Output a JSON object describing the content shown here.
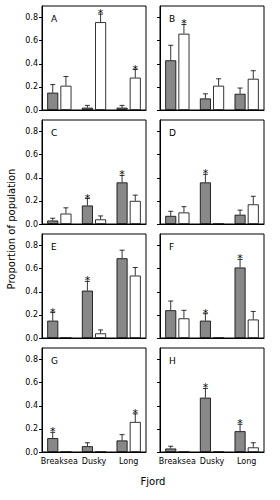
{
  "xlabel": "Fjord",
  "ylabel": "Proportion of population",
  "chart_data": [
    {
      "type": "bar",
      "title": "A",
      "categories": [
        "Breaksea",
        "Dusky",
        "Long"
      ],
      "series": [
        {
          "color": "#888888",
          "values": [
            0.15,
            0.02,
            0.02
          ],
          "errors": [
            0.07,
            0.02,
            0.02
          ]
        },
        {
          "color": "#ffffff",
          "values": [
            0.21,
            0.76,
            0.28
          ],
          "errors": [
            0.08,
            0.07,
            0.07
          ]
        }
      ],
      "annotations": [
        {
          "category": "Dusky",
          "text": "*"
        },
        {
          "category": "Long",
          "text": "*"
        }
      ],
      "ylim": [
        0,
        0.9
      ],
      "yticks": [
        {
          "value": 0,
          "label": "0.0"
        },
        0.2,
        0.4,
        0.6,
        0.8
      ],
      "tick_labels": "y"
    },
    {
      "type": "bar",
      "title": "B",
      "categories": [
        "Breaksea",
        "Dusky",
        "Long"
      ],
      "series": [
        {
          "color": "#888888",
          "values": [
            0.43,
            0.1,
            0.14
          ],
          "errors": [
            0.13,
            0.04,
            0.05
          ]
        },
        {
          "color": "#ffffff",
          "values": [
            0.66,
            0.21,
            0.27
          ],
          "errors": [
            0.08,
            0.06,
            0.07
          ]
        }
      ],
      "annotations": [
        {
          "category": "Breaksea",
          "text": "*"
        }
      ],
      "ylim": [
        0,
        0.9
      ],
      "yticks": [
        {
          "value": 0,
          "label": "0.0"
        },
        0.2,
        0.4,
        0.6,
        0.8
      ],
      "tick_labels": false
    },
    {
      "type": "bar",
      "title": "C",
      "categories": [
        "Breaksea",
        "Dusky",
        "Long"
      ],
      "series": [
        {
          "color": "#888888",
          "values": [
            0.03,
            0.16,
            0.36
          ],
          "errors": [
            0.02,
            0.06,
            0.06
          ]
        },
        {
          "color": "#ffffff",
          "values": [
            0.09,
            0.04,
            0.2
          ],
          "errors": [
            0.05,
            0.03,
            0.05
          ]
        }
      ],
      "annotations": [
        {
          "category": "Dusky",
          "text": "*"
        },
        {
          "category": "Long",
          "text": "*"
        }
      ],
      "ylim": [
        0,
        0.9
      ],
      "yticks": [
        {
          "value": 0,
          "label": "0.0"
        },
        0.2,
        0.4,
        0.6,
        0.8
      ],
      "tick_labels": "y"
    },
    {
      "type": "bar",
      "title": "D",
      "categories": [
        "Breaksea",
        "Dusky",
        "Long"
      ],
      "series": [
        {
          "color": "#888888",
          "values": [
            0.07,
            0.36,
            0.08
          ],
          "errors": [
            0.04,
            0.07,
            0.04
          ]
        },
        {
          "color": "#ffffff",
          "values": [
            0.1,
            0.0,
            0.17
          ],
          "errors": [
            0.05,
            0.0,
            0.07
          ]
        }
      ],
      "annotations": [
        {
          "category": "Dusky",
          "text": "*"
        }
      ],
      "ylim": [
        0,
        0.9
      ],
      "yticks": [
        {
          "value": 0,
          "label": "0.0"
        },
        0.2,
        0.4,
        0.6,
        0.8
      ],
      "tick_labels": false
    },
    {
      "type": "bar",
      "title": "E",
      "categories": [
        "Breaksea",
        "Dusky",
        "Long"
      ],
      "series": [
        {
          "color": "#888888",
          "values": [
            0.15,
            0.41,
            0.69
          ],
          "errors": [
            0.07,
            0.08,
            0.07
          ]
        },
        {
          "color": "#ffffff",
          "values": [
            0.0,
            0.04,
            0.54
          ],
          "errors": [
            0.0,
            0.03,
            0.07
          ]
        }
      ],
      "annotations": [
        {
          "category": "Breaksea",
          "text": "*"
        },
        {
          "category": "Dusky",
          "text": "*"
        }
      ],
      "ylim": [
        0,
        0.9
      ],
      "yticks": [
        {
          "value": 0,
          "label": "0.0"
        },
        0.2,
        0.4,
        0.6,
        0.8
      ],
      "tick_labels": "y"
    },
    {
      "type": "bar",
      "title": "F",
      "categories": [
        "Breaksea",
        "Dusky",
        "Long"
      ],
      "series": [
        {
          "color": "#888888",
          "values": [
            0.24,
            0.15,
            0.61
          ],
          "errors": [
            0.08,
            0.06,
            0.07
          ]
        },
        {
          "color": "#ffffff",
          "values": [
            0.17,
            0.0,
            0.16
          ],
          "errors": [
            0.07,
            0.0,
            0.07
          ]
        }
      ],
      "annotations": [
        {
          "category": "Dusky",
          "text": "*"
        },
        {
          "category": "Long",
          "text": "*"
        }
      ],
      "ylim": [
        0,
        0.9
      ],
      "yticks": [
        {
          "value": 0,
          "label": "0.0"
        },
        0.2,
        0.4,
        0.6,
        0.8
      ],
      "tick_labels": false
    },
    {
      "type": "bar",
      "title": "G",
      "categories": [
        "Breaksea",
        "Dusky",
        "Long"
      ],
      "series": [
        {
          "color": "#888888",
          "values": [
            0.12,
            0.05,
            0.1
          ],
          "errors": [
            0.05,
            0.03,
            0.05
          ]
        },
        {
          "color": "#ffffff",
          "values": [
            0.0,
            0.0,
            0.26
          ],
          "errors": [
            0.0,
            0.0,
            0.07
          ]
        }
      ],
      "annotations": [
        {
          "category": "Breaksea",
          "text": "*"
        },
        {
          "category": "Long",
          "text": "*"
        }
      ],
      "ylim": [
        0,
        0.9
      ],
      "yticks": [
        {
          "value": 0,
          "label": "0.0"
        },
        0.2,
        0.4,
        0.6,
        0.8
      ]
    },
    {
      "type": "bar",
      "title": "H",
      "categories": [
        "Breaksea",
        "Dusky",
        "Long"
      ],
      "series": [
        {
          "color": "#888888",
          "values": [
            0.03,
            0.47,
            0.18
          ],
          "errors": [
            0.02,
            0.08,
            0.06
          ]
        },
        {
          "color": "#ffffff",
          "values": [
            0.0,
            0.0,
            0.04
          ],
          "errors": [
            0.0,
            0.0,
            0.04
          ]
        }
      ],
      "annotations": [
        {
          "category": "Dusky",
          "text": "*"
        },
        {
          "category": "Long",
          "text": "*"
        }
      ],
      "ylim": [
        0,
        0.9
      ],
      "yticks": [
        {
          "value": 0,
          "label": "0.0"
        },
        0.2,
        0.4,
        0.6,
        0.8
      ],
      "tick_labels": "x"
    }
  ]
}
